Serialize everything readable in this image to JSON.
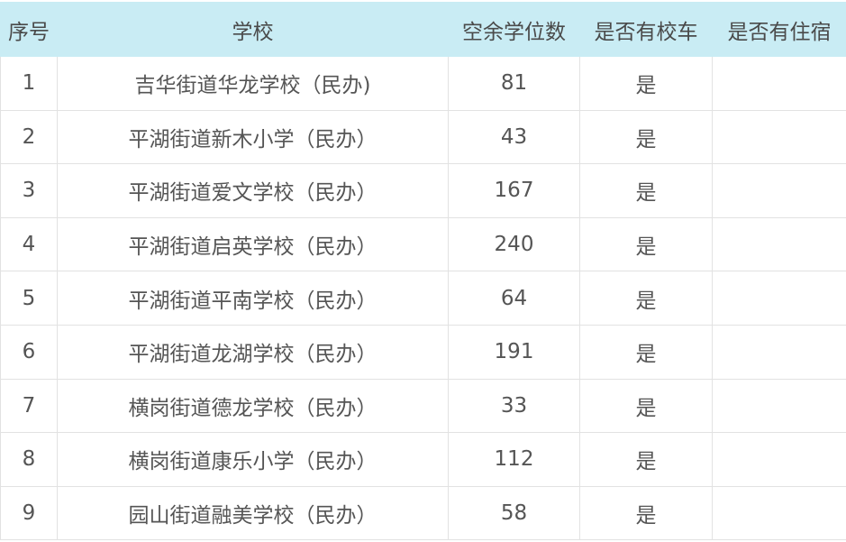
{
  "header": {
    "index": "序号",
    "school": "学校",
    "vacancies": "空余学位数",
    "bus": "是否有校车",
    "dorm": "是否有住宿"
  },
  "colors": {
    "header_bg": "#c9ecf4",
    "text": "#555555",
    "border": "#e2e2e2"
  },
  "rows": [
    {
      "index": "1",
      "school": "吉华街道华龙学校（民办)",
      "vacancies": "81",
      "bus": "是",
      "dorm": ""
    },
    {
      "index": "2",
      "school": "平湖街道新木小学（民办）",
      "vacancies": "43",
      "bus": "是",
      "dorm": ""
    },
    {
      "index": "3",
      "school": "平湖街道爱文学校（民办）",
      "vacancies": "167",
      "bus": "是",
      "dorm": ""
    },
    {
      "index": "4",
      "school": "平湖街道启英学校（民办）",
      "vacancies": "240",
      "bus": "是",
      "dorm": ""
    },
    {
      "index": "5",
      "school": "平湖街道平南学校（民办）",
      "vacancies": "64",
      "bus": "是",
      "dorm": ""
    },
    {
      "index": "6",
      "school": "平湖街道龙湖学校（民办）",
      "vacancies": "191",
      "bus": "是",
      "dorm": ""
    },
    {
      "index": "7",
      "school": "横岗街道德龙学校（民办）",
      "vacancies": "33",
      "bus": "是",
      "dorm": ""
    },
    {
      "index": "8",
      "school": "横岗街道康乐小学（民办）",
      "vacancies": "112",
      "bus": "是",
      "dorm": ""
    },
    {
      "index": "9",
      "school": "园山街道融美学校（民办）",
      "vacancies": "58",
      "bus": "是",
      "dorm": ""
    }
  ]
}
